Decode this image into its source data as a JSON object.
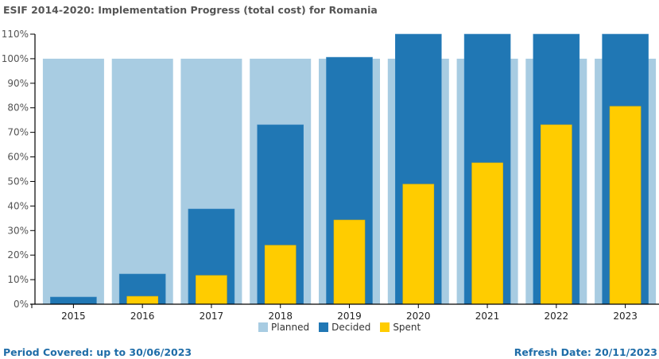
{
  "title": "ESIF 2014-2020: Implementation Progress (total cost) for Romania",
  "footer": {
    "period_covered": "Period Covered: up to 30/06/2023",
    "refresh_date": "Refresh Date: 20/11/2023"
  },
  "colors": {
    "planned": "#a8cce2",
    "decided": "#2077b4",
    "spent": "#ffcc00",
    "axis": "#000000"
  },
  "chart_data": {
    "type": "bar",
    "title": "ESIF 2014-2020: Implementation Progress (total cost) for Romania",
    "xlabel": "",
    "ylabel": "",
    "ylim": [
      0,
      110
    ],
    "yticks": [
      "0%",
      "10%",
      "20%",
      "30%",
      "40%",
      "50%",
      "60%",
      "70%",
      "80%",
      "90%",
      "100%",
      "110%"
    ],
    "ytick_values": [
      0,
      10,
      20,
      30,
      40,
      50,
      60,
      70,
      80,
      90,
      100,
      110
    ],
    "grid": false,
    "legend_position": "bottom",
    "categories": [
      "2015",
      "2016",
      "2017",
      "2018",
      "2019",
      "2020",
      "2021",
      "2022",
      "2023"
    ],
    "series": [
      {
        "name": "Planned",
        "values": [
          100,
          100,
          100,
          100,
          100,
          100,
          100,
          100,
          100
        ]
      },
      {
        "name": "Decided",
        "values": [
          2.9,
          12.3,
          38.8,
          73.1,
          100.6,
          110,
          110,
          110,
          110
        ]
      },
      {
        "name": "Spent",
        "values": [
          0,
          3.2,
          11.7,
          24.0,
          34.3,
          48.9,
          57.6,
          73.1,
          80.6
        ]
      }
    ]
  }
}
